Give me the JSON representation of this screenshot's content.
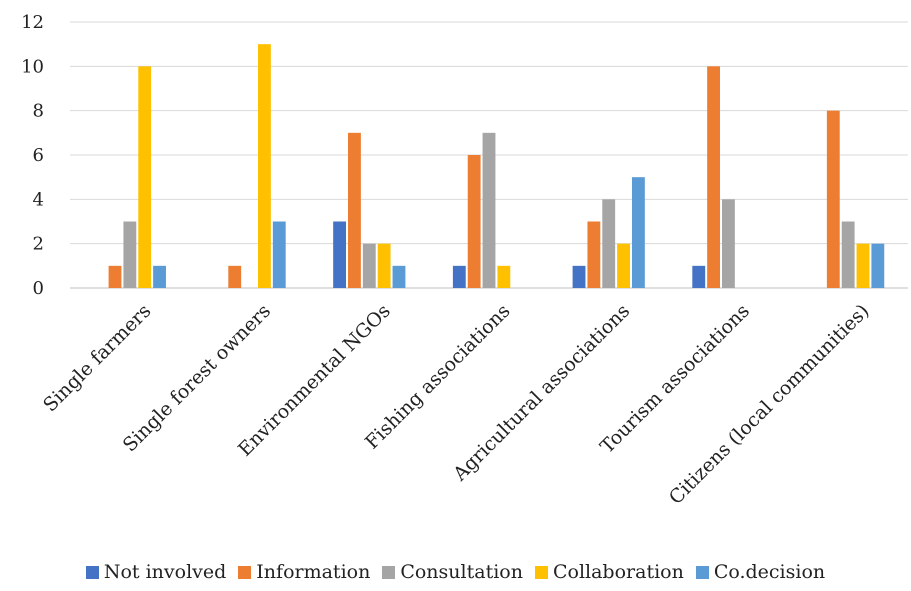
{
  "chart_data": {
    "type": "bar",
    "title": "",
    "xlabel": "",
    "ylabel": "",
    "ylim": [
      0,
      12
    ],
    "yticks": [
      0,
      2,
      4,
      6,
      8,
      10,
      12
    ],
    "grid": true,
    "legend_position": "bottom",
    "categories": [
      "Single farmers",
      "Single forest owners",
      "Environmental NGOs",
      "Fishing associations",
      "Agricultural associations",
      "Tourism associations",
      "Citizens (local communities)"
    ],
    "series": [
      {
        "name": "Not involved",
        "color": "#4472C4",
        "values": [
          0,
          0,
          3,
          1,
          1,
          1,
          0
        ]
      },
      {
        "name": "Information",
        "color": "#ED7D31",
        "values": [
          1,
          1,
          7,
          6,
          3,
          10,
          8
        ]
      },
      {
        "name": "Consultation",
        "color": "#A5A5A5",
        "values": [
          3,
          0,
          2,
          7,
          4,
          4,
          3
        ]
      },
      {
        "name": "Collaboration",
        "color": "#FFC000",
        "values": [
          10,
          11,
          2,
          1,
          2,
          0,
          2
        ]
      },
      {
        "name": "Co.decision",
        "color": "#5B9BD5",
        "values": [
          1,
          3,
          1,
          0,
          5,
          0,
          2
        ]
      }
    ]
  }
}
